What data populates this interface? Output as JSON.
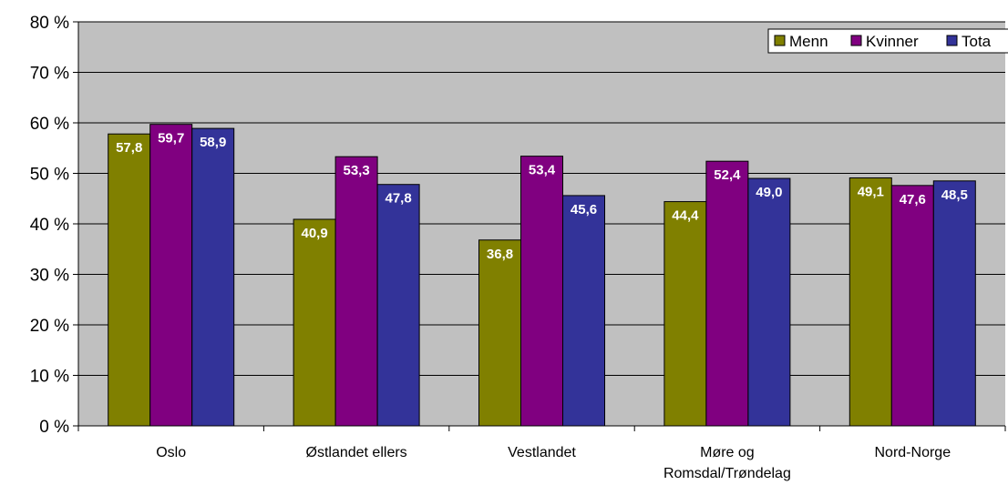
{
  "chart_data": {
    "type": "bar",
    "title": "",
    "xlabel": "",
    "ylabel": "",
    "ylim": [
      0,
      80
    ],
    "yticks": [
      0,
      10,
      20,
      30,
      40,
      50,
      60,
      70,
      80
    ],
    "ytick_labels": [
      "0 %",
      "10 %",
      "20 %",
      "30 %",
      "40 %",
      "50 %",
      "60 %",
      "70 %",
      "80 %"
    ],
    "categories": [
      [
        "Oslo"
      ],
      [
        "Østlandet ellers"
      ],
      [
        "Vestlandet"
      ],
      [
        "Møre og",
        "Romsdal/Trøndelag"
      ],
      [
        "Nord-Norge"
      ]
    ],
    "series": [
      {
        "name": "Menn",
        "color": "#808000",
        "values": [
          57.8,
          40.9,
          36.8,
          44.4,
          49.1
        ],
        "labels": [
          "57,8",
          "40,9",
          "36,8",
          "44,4",
          "49,1"
        ]
      },
      {
        "name": "Kvinner",
        "color": "#800080",
        "values": [
          59.7,
          53.3,
          53.4,
          52.4,
          47.6
        ],
        "labels": [
          "59,7",
          "53,3",
          "53,4",
          "52,4",
          "47,6"
        ]
      },
      {
        "name": "Tota",
        "color": "#333399",
        "values": [
          58.9,
          47.8,
          45.6,
          49.0,
          48.5
        ],
        "labels": [
          "58,9",
          "47,8",
          "45,6",
          "49,0",
          "48,5"
        ]
      }
    ],
    "grid": true,
    "plot_background": "#c0c0c0",
    "legend_position": "top-right"
  }
}
